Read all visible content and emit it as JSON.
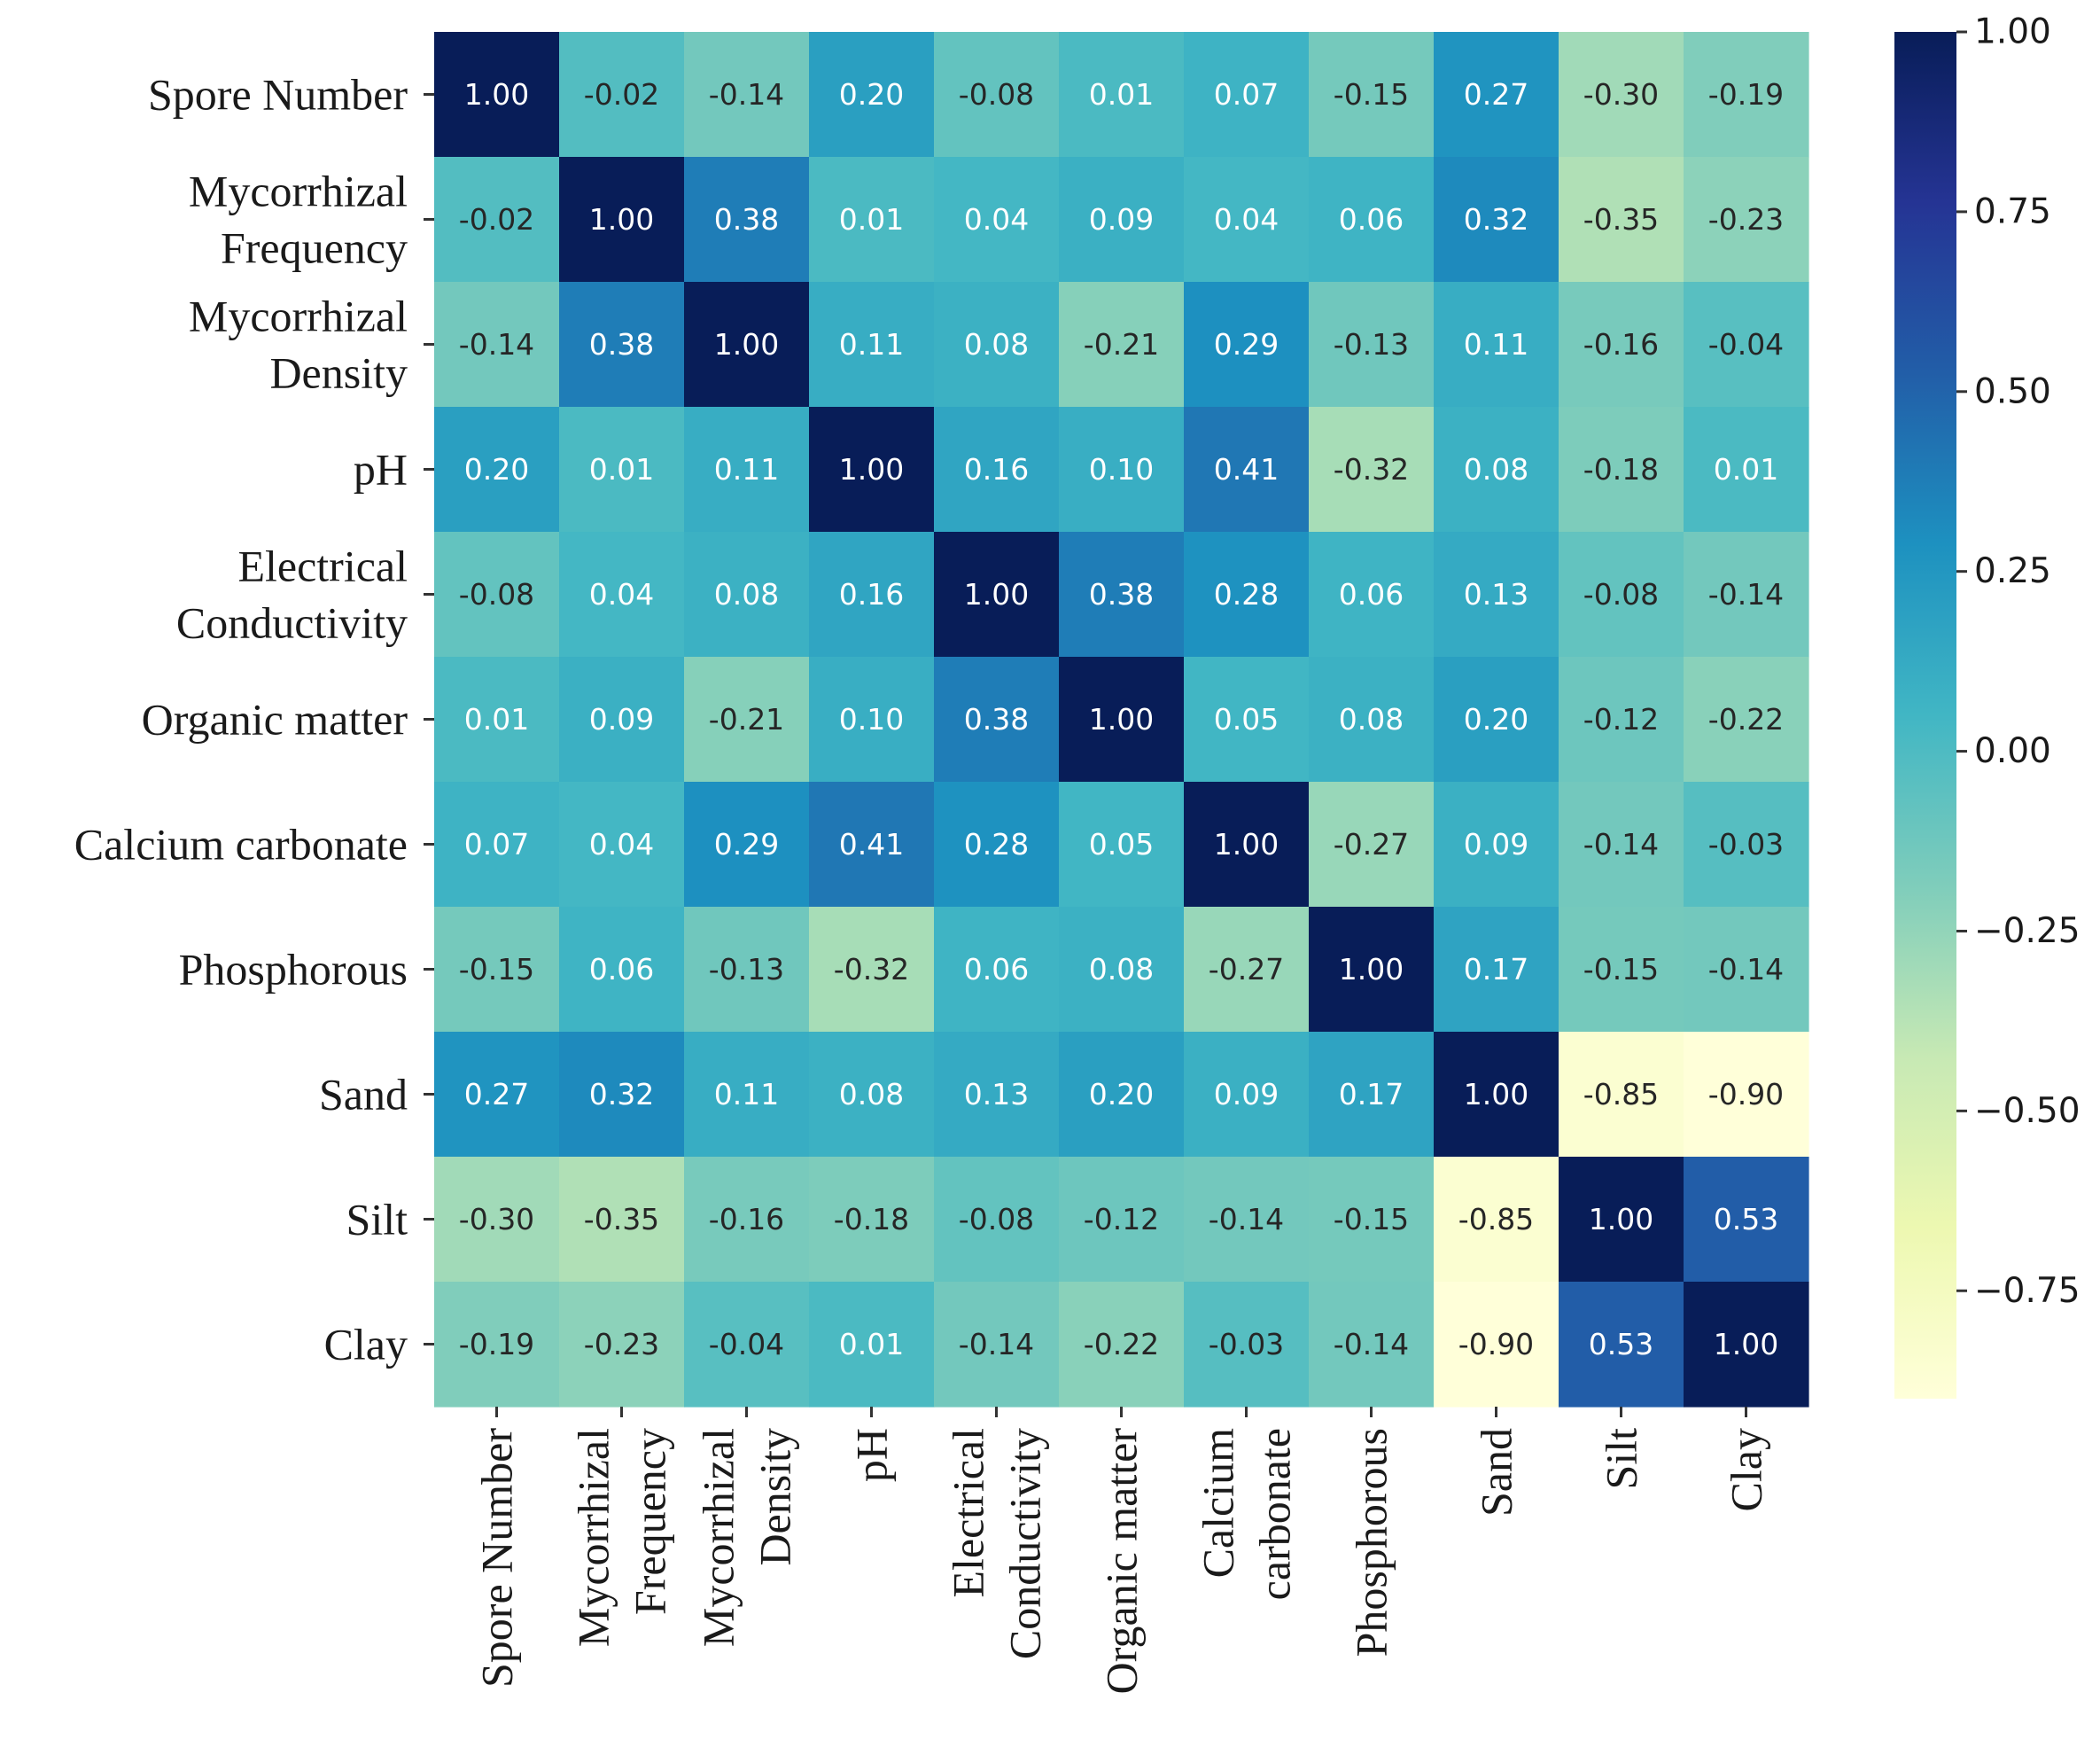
{
  "chart_data": {
    "type": "heatmap",
    "title": "",
    "xlabel": "",
    "ylabel": "",
    "row_labels": [
      [
        "Spore Number"
      ],
      [
        "Mycorrhizal",
        "Frequency"
      ],
      [
        "Mycorrhizal",
        "Density"
      ],
      [
        "pH"
      ],
      [
        "Electrical",
        "Conductivity"
      ],
      [
        "Organic matter"
      ],
      [
        "Calcium carbonate"
      ],
      [
        "Phosphorous"
      ],
      [
        "Sand"
      ],
      [
        "Silt"
      ],
      [
        "Clay"
      ]
    ],
    "col_labels": [
      [
        "Spore Number"
      ],
      [
        "Mycorrhizal",
        "Frequency"
      ],
      [
        "Mycorrhizal",
        "Density"
      ],
      [
        "pH"
      ],
      [
        "Electrical",
        "Conductivity"
      ],
      [
        "Organic matter"
      ],
      [
        "Calcium",
        "carbonate"
      ],
      [
        "Phosphorous"
      ],
      [
        "Sand"
      ],
      [
        "Silt"
      ],
      [
        "Clay"
      ]
    ],
    "matrix": [
      [
        1.0,
        -0.02,
        -0.14,
        0.2,
        -0.08,
        0.01,
        0.07,
        -0.15,
        0.27,
        -0.3,
        -0.19
      ],
      [
        -0.02,
        1.0,
        0.38,
        0.01,
        0.04,
        0.09,
        0.04,
        0.06,
        0.32,
        -0.35,
        -0.23
      ],
      [
        -0.14,
        0.38,
        1.0,
        0.11,
        0.08,
        -0.21,
        0.29,
        -0.13,
        0.11,
        -0.16,
        -0.04
      ],
      [
        0.2,
        0.01,
        0.11,
        1.0,
        0.16,
        0.1,
        0.41,
        -0.32,
        0.08,
        -0.18,
        0.01
      ],
      [
        -0.08,
        0.04,
        0.08,
        0.16,
        1.0,
        0.38,
        0.28,
        0.06,
        0.13,
        -0.08,
        -0.14
      ],
      [
        0.01,
        0.09,
        -0.21,
        0.1,
        0.38,
        1.0,
        0.05,
        0.08,
        0.2,
        -0.12,
        -0.22
      ],
      [
        0.07,
        0.04,
        0.29,
        0.41,
        0.28,
        0.05,
        1.0,
        -0.27,
        0.09,
        -0.14,
        -0.03
      ],
      [
        -0.15,
        0.06,
        -0.13,
        -0.32,
        0.06,
        0.08,
        -0.27,
        1.0,
        0.17,
        -0.15,
        -0.14
      ],
      [
        0.27,
        0.32,
        0.11,
        0.08,
        0.13,
        0.2,
        0.09,
        0.17,
        1.0,
        -0.85,
        -0.9
      ],
      [
        -0.3,
        -0.35,
        -0.16,
        -0.18,
        -0.08,
        -0.12,
        -0.14,
        -0.15,
        -0.85,
        1.0,
        0.53
      ],
      [
        -0.19,
        -0.23,
        -0.04,
        0.01,
        -0.14,
        -0.22,
        -0.03,
        -0.14,
        -0.9,
        0.53,
        1.0
      ]
    ],
    "value_format": "0.00",
    "colorbar": {
      "colormap": "YlGnBu",
      "vmin": -0.9,
      "vmax": 1.0,
      "ticks": [
        1.0,
        0.75,
        0.5,
        0.25,
        0.0,
        -0.25,
        -0.5,
        -0.75
      ],
      "tick_labels": [
        "1.00",
        "0.75",
        "0.50",
        "0.25",
        "0.00",
        "−0.25",
        "−0.50",
        "−0.75"
      ]
    },
    "colormap_stops": [
      "#ffffd9",
      "#edf8b1",
      "#c7e9b4",
      "#7fcdbb",
      "#41b6c4",
      "#1d91c0",
      "#225ea8",
      "#253494",
      "#081d58"
    ],
    "text_colors": {
      "light": "#ffffff",
      "dark": "#262626"
    }
  }
}
